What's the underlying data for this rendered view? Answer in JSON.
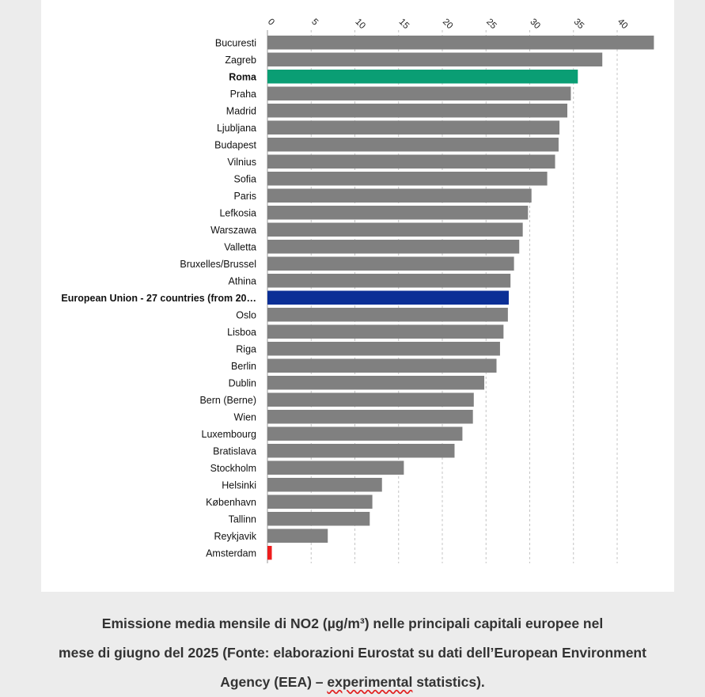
{
  "chart_data": {
    "type": "bar",
    "orientation": "horizontal",
    "xlim": [
      0,
      45
    ],
    "xticks": [
      "0",
      "5",
      "10",
      "15",
      "20",
      "25",
      "30",
      "35",
      "40"
    ],
    "grid": true,
    "highlight_bold": [
      "Roma",
      "European Union - 27 countries (from 20…"
    ],
    "categories": [
      "Bucuresti",
      "Zagreb",
      "Roma",
      "Praha",
      "Madrid",
      "Ljubljana",
      "Budapest",
      "Vilnius",
      "Sofia",
      "Paris",
      "Lefkosia",
      "Warszawa",
      "Valletta",
      "Bruxelles/Brussel",
      "Athina",
      "European Union - 27 countries (from 20…",
      "Oslo",
      "Lisboa",
      "Riga",
      "Berlin",
      "Dublin",
      "Bern (Berne)",
      "Wien",
      "Luxembourg",
      "Bratislava",
      "Stockholm",
      "Helsinki",
      "København",
      "Tallinn",
      "Reykjavik",
      "Amsterdam"
    ],
    "values": [
      44.2,
      38.3,
      35.5,
      34.7,
      34.3,
      33.4,
      33.3,
      32.9,
      32.0,
      30.2,
      29.8,
      29.2,
      28.8,
      28.2,
      27.8,
      27.6,
      27.5,
      27.0,
      26.6,
      26.2,
      24.8,
      23.6,
      23.5,
      22.3,
      21.4,
      15.6,
      13.1,
      12.0,
      11.7,
      6.9,
      0.5
    ],
    "colors": {
      "default": "#808080",
      "Roma": "#0a9e74",
      "European Union - 27 countries (from 20…": "#0b2f96",
      "Amsterdam": "#ee1c1c"
    }
  },
  "caption": {
    "line1": "Emissione media mensile di NO2 (µg/m³) nelle principali capitali europee nel",
    "line2": "mese di giugno del 2025 (Fonte: elaborazioni Eurostat su dati dell’European Environment",
    "line3_a": "Agency (EEA) – ",
    "line3_b": "experimental",
    "line3_c": " statistics)."
  }
}
